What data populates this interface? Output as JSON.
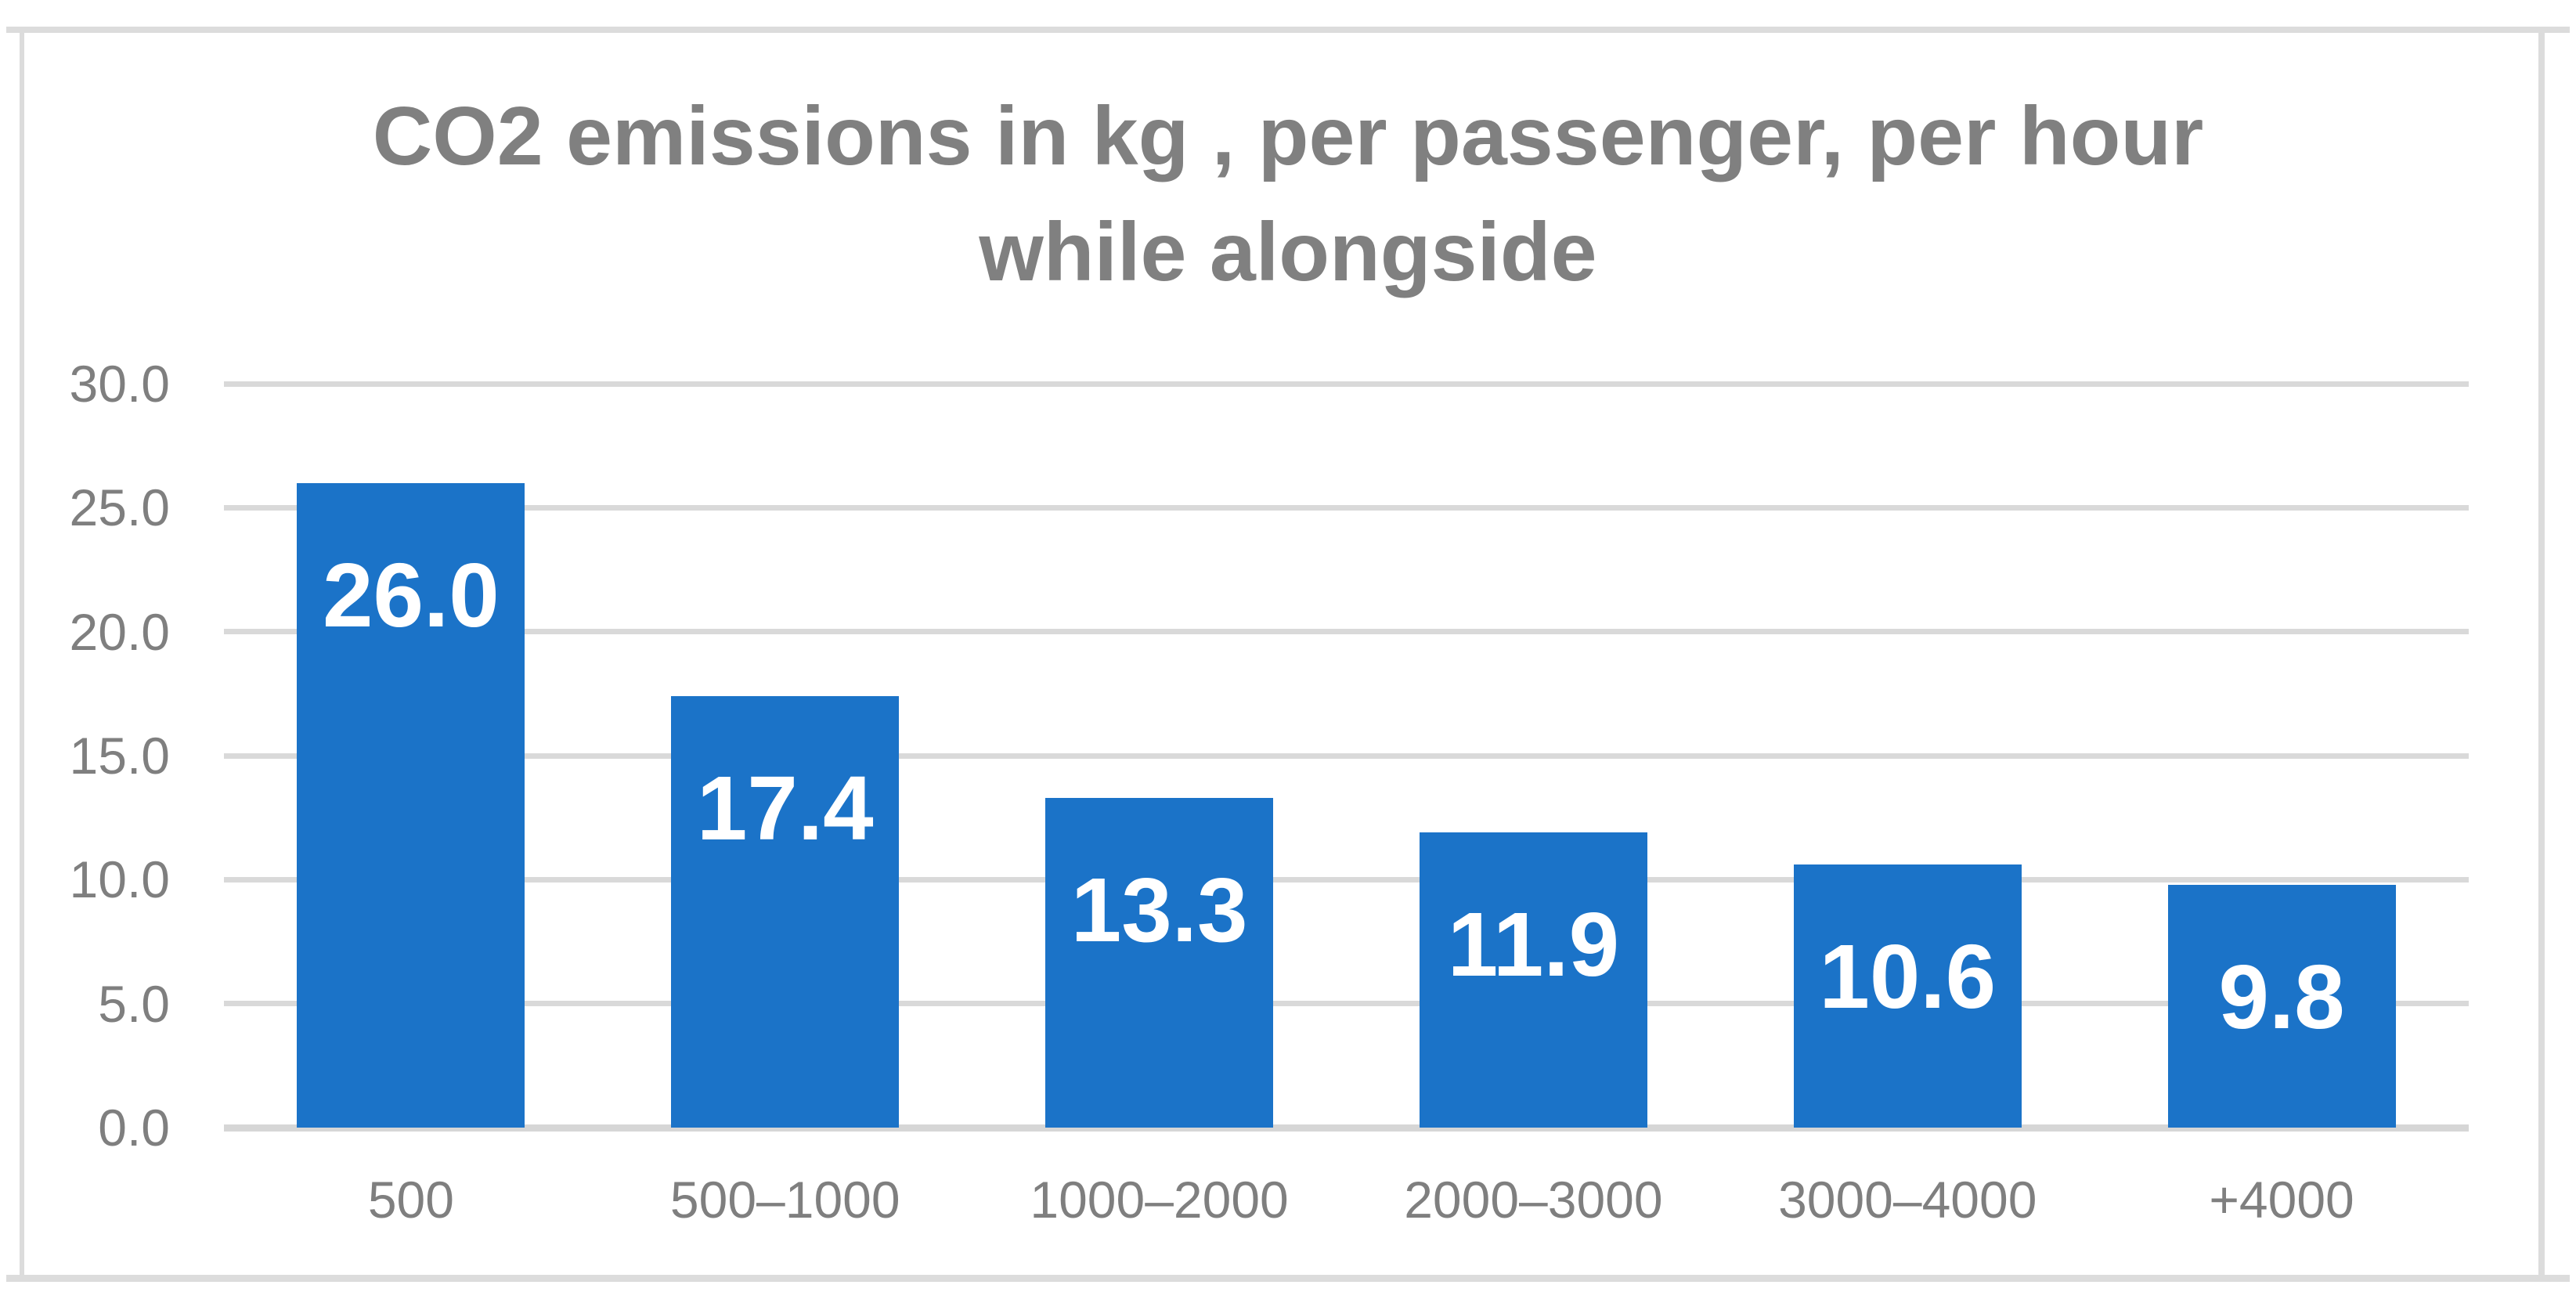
{
  "title": "CO2 emissions in kg , per passenger, per hour while alongside",
  "chart_data": {
    "type": "bar",
    "title": "CO2 emissions in kg , per passenger, per hour while alongside",
    "categories": [
      "500",
      "500–1000",
      "1000–2000",
      "2000–3000",
      "3000–4000",
      "+4000"
    ],
    "values": [
      26.0,
      17.4,
      13.3,
      11.9,
      10.6,
      9.8
    ],
    "value_labels": [
      "26.0",
      "17.4",
      "13.3",
      "11.9",
      "10.6",
      "9.8"
    ],
    "xlabel": "",
    "ylabel": "",
    "ylim": [
      0,
      30
    ],
    "ytick_step": 5,
    "ytick_labels": [
      "0.0",
      "5.0",
      "10.0",
      "15.0",
      "20.0",
      "25.0",
      "30.0"
    ],
    "grid": true,
    "legend": "none",
    "colors": {
      "bar": "#1b73c8",
      "gridline": "#d9d9d9",
      "axis_line": "#d6d6d6",
      "title_text": "#808080",
      "tick_text": "#7f7f7f",
      "value_label_text": "#ffffff",
      "frame_border": "#dcdcdc",
      "background": "#ffffff"
    }
  }
}
